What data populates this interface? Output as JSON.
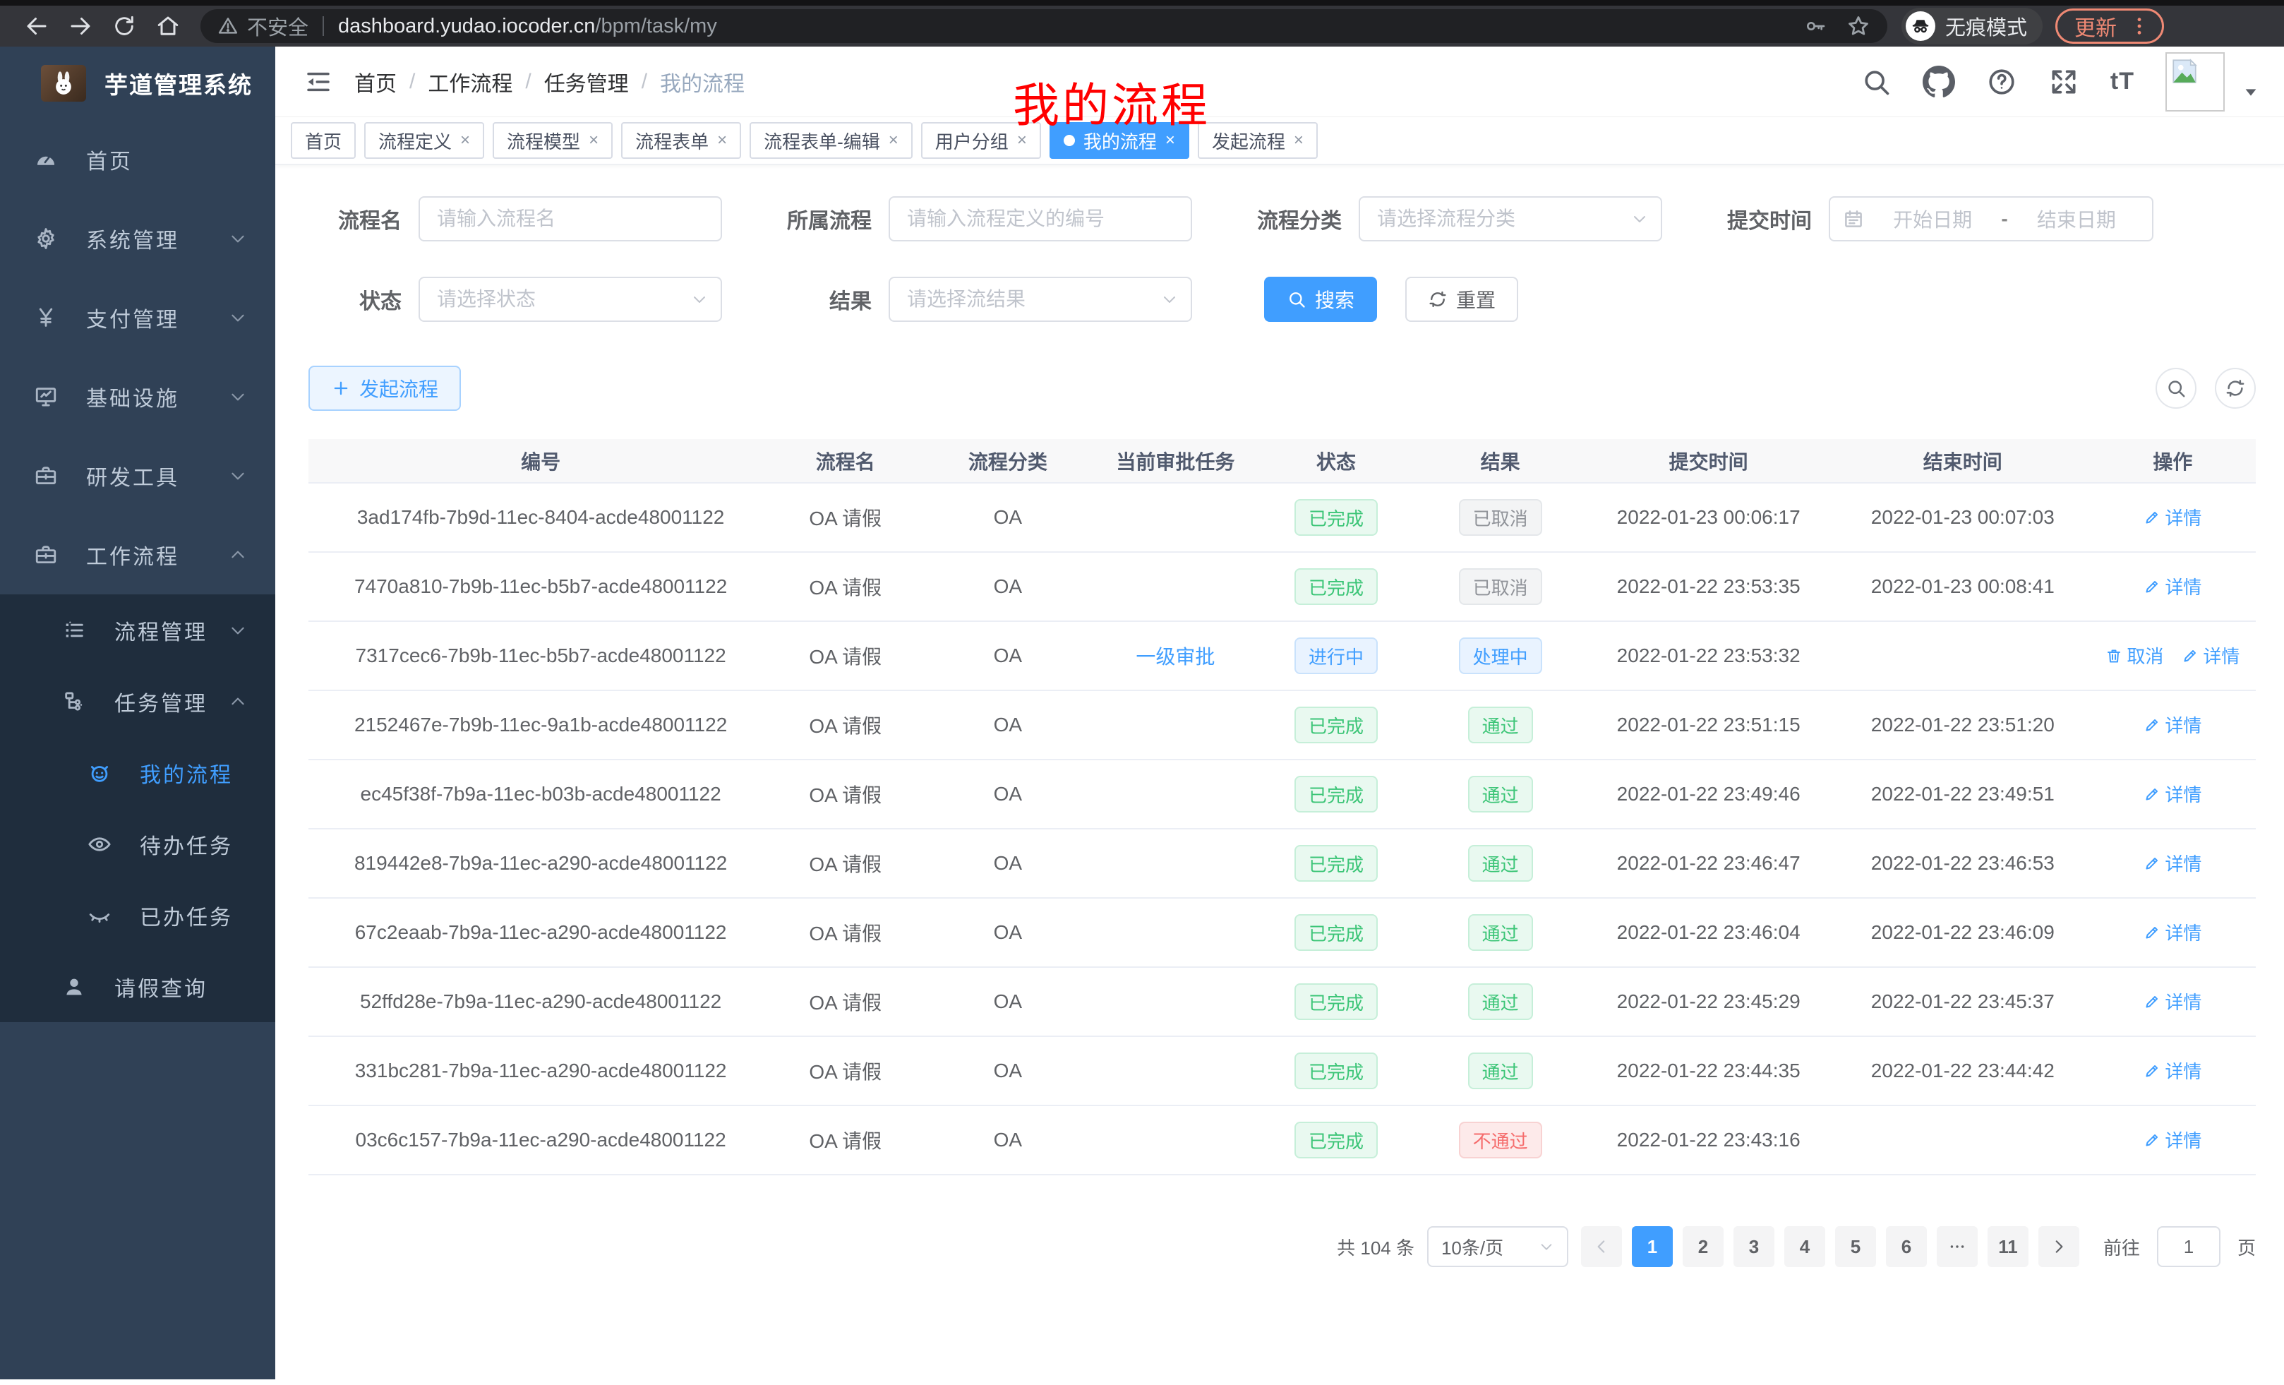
{
  "browser": {
    "insecure_label": "不安全",
    "url_host": "dashboard.yudao.iocoder.cn",
    "url_path": "/bpm/task/my",
    "incognito_label": "无痕模式",
    "update_label": "更新"
  },
  "sidebar": {
    "title": "芋道管理系统",
    "menu": [
      {
        "label": "首页",
        "icon": "dashboard",
        "indent": 1,
        "arrow": null,
        "active": false,
        "section": "base"
      },
      {
        "label": "系统管理",
        "icon": "gear",
        "indent": 1,
        "arrow": "down",
        "active": false,
        "section": "base"
      },
      {
        "label": "支付管理",
        "icon": "yen",
        "indent": 1,
        "arrow": "down",
        "active": false,
        "section": "base"
      },
      {
        "label": "基础设施",
        "icon": "monitor",
        "indent": 1,
        "arrow": "down",
        "active": false,
        "section": "base"
      },
      {
        "label": "研发工具",
        "icon": "toolbox",
        "indent": 1,
        "arrow": "down",
        "active": false,
        "section": "base"
      },
      {
        "label": "工作流程",
        "icon": "toolbox",
        "indent": 1,
        "arrow": "up",
        "active": false,
        "section": "base"
      },
      {
        "label": "流程管理",
        "icon": "list",
        "indent": 2,
        "arrow": "down",
        "active": false,
        "section": "sub"
      },
      {
        "label": "任务管理",
        "icon": "tree",
        "indent": 2,
        "arrow": "up",
        "active": false,
        "section": "sub"
      },
      {
        "label": "我的流程",
        "icon": "robot",
        "indent": 3,
        "arrow": null,
        "active": true,
        "section": "sub"
      },
      {
        "label": "待办任务",
        "icon": "eye",
        "indent": 3,
        "arrow": null,
        "active": false,
        "section": "sub"
      },
      {
        "label": "已办任务",
        "icon": "eye-off",
        "indent": 3,
        "arrow": null,
        "active": false,
        "section": "sub"
      },
      {
        "label": "请假查询",
        "icon": "user",
        "indent": 2,
        "arrow": null,
        "active": false,
        "section": "sub"
      }
    ]
  },
  "navbar": {
    "breadcrumb": [
      "首页",
      "工作流程",
      "任务管理",
      "我的流程"
    ],
    "overlay_title": "我的流程"
  },
  "tabs": [
    {
      "label": "首页",
      "closable": false,
      "active": false
    },
    {
      "label": "流程定义",
      "closable": true,
      "active": false
    },
    {
      "label": "流程模型",
      "closable": true,
      "active": false
    },
    {
      "label": "流程表单",
      "closable": true,
      "active": false
    },
    {
      "label": "流程表单-编辑",
      "closable": true,
      "active": false
    },
    {
      "label": "用户分组",
      "closable": true,
      "active": false
    },
    {
      "label": "我的流程",
      "closable": true,
      "active": true
    },
    {
      "label": "发起流程",
      "closable": true,
      "active": false
    }
  ],
  "filters": {
    "name_label": "流程名",
    "name_placeholder": "请输入流程名",
    "definition_label": "所属流程",
    "definition_placeholder": "请输入流程定义的编号",
    "category_label": "流程分类",
    "category_placeholder": "请选择流程分类",
    "time_label": "提交时间",
    "time_start_placeholder": "开始日期",
    "time_separator": "-",
    "time_end_placeholder": "结束日期",
    "status_label": "状态",
    "status_placeholder": "请选择状态",
    "result_label": "结果",
    "result_placeholder": "请选择流结果",
    "search_label": "搜索",
    "reset_label": "重置"
  },
  "toolbar": {
    "create_label": "发起流程"
  },
  "table": {
    "columns": [
      "编号",
      "流程名",
      "流程分类",
      "当前审批任务",
      "状态",
      "结果",
      "提交时间",
      "结束时间",
      "操作"
    ],
    "rows": [
      {
        "id": "3ad174fb-7b9d-11ec-8404-acde48001122",
        "name": "OA 请假",
        "category": "OA",
        "task": "",
        "status": "已完成",
        "status_type": "success",
        "result": "已取消",
        "result_type": "info",
        "submit_time": "2022-01-23 00:06:17",
        "end_time": "2022-01-23 00:07:03",
        "actions": [
          {
            "label": "详情",
            "icon": "edit"
          }
        ]
      },
      {
        "id": "7470a810-7b9b-11ec-b5b7-acde48001122",
        "name": "OA 请假",
        "category": "OA",
        "task": "",
        "status": "已完成",
        "status_type": "success",
        "result": "已取消",
        "result_type": "info",
        "submit_time": "2022-01-22 23:53:35",
        "end_time": "2022-01-23 00:08:41",
        "actions": [
          {
            "label": "详情",
            "icon": "edit"
          }
        ]
      },
      {
        "id": "7317cec6-7b9b-11ec-b5b7-acde48001122",
        "name": "OA 请假",
        "category": "OA",
        "task": "一级审批",
        "status": "进行中",
        "status_type": "primary",
        "result": "处理中",
        "result_type": "primary",
        "submit_time": "2022-01-22 23:53:32",
        "end_time": "",
        "actions": [
          {
            "label": "取消",
            "icon": "delete"
          },
          {
            "label": "详情",
            "icon": "edit"
          }
        ]
      },
      {
        "id": "2152467e-7b9b-11ec-9a1b-acde48001122",
        "name": "OA 请假",
        "category": "OA",
        "task": "",
        "status": "已完成",
        "status_type": "success",
        "result": "通过",
        "result_type": "success",
        "submit_time": "2022-01-22 23:51:15",
        "end_time": "2022-01-22 23:51:20",
        "actions": [
          {
            "label": "详情",
            "icon": "edit"
          }
        ]
      },
      {
        "id": "ec45f38f-7b9a-11ec-b03b-acde48001122",
        "name": "OA 请假",
        "category": "OA",
        "task": "",
        "status": "已完成",
        "status_type": "success",
        "result": "通过",
        "result_type": "success",
        "submit_time": "2022-01-22 23:49:46",
        "end_time": "2022-01-22 23:49:51",
        "actions": [
          {
            "label": "详情",
            "icon": "edit"
          }
        ]
      },
      {
        "id": "819442e8-7b9a-11ec-a290-acde48001122",
        "name": "OA 请假",
        "category": "OA",
        "task": "",
        "status": "已完成",
        "status_type": "success",
        "result": "通过",
        "result_type": "success",
        "submit_time": "2022-01-22 23:46:47",
        "end_time": "2022-01-22 23:46:53",
        "actions": [
          {
            "label": "详情",
            "icon": "edit"
          }
        ]
      },
      {
        "id": "67c2eaab-7b9a-11ec-a290-acde48001122",
        "name": "OA 请假",
        "category": "OA",
        "task": "",
        "status": "已完成",
        "status_type": "success",
        "result": "通过",
        "result_type": "success",
        "submit_time": "2022-01-22 23:46:04",
        "end_time": "2022-01-22 23:46:09",
        "actions": [
          {
            "label": "详情",
            "icon": "edit"
          }
        ]
      },
      {
        "id": "52ffd28e-7b9a-11ec-a290-acde48001122",
        "name": "OA 请假",
        "category": "OA",
        "task": "",
        "status": "已完成",
        "status_type": "success",
        "result": "通过",
        "result_type": "success",
        "submit_time": "2022-01-22 23:45:29",
        "end_time": "2022-01-22 23:45:37",
        "actions": [
          {
            "label": "详情",
            "icon": "edit"
          }
        ]
      },
      {
        "id": "331bc281-7b9a-11ec-a290-acde48001122",
        "name": "OA 请假",
        "category": "OA",
        "task": "",
        "status": "已完成",
        "status_type": "success",
        "result": "通过",
        "result_type": "success",
        "submit_time": "2022-01-22 23:44:35",
        "end_time": "2022-01-22 23:44:42",
        "actions": [
          {
            "label": "详情",
            "icon": "edit"
          }
        ]
      },
      {
        "id": "03c6c157-7b9a-11ec-a290-acde48001122",
        "name": "OA 请假",
        "category": "OA",
        "task": "",
        "status": "已完成",
        "status_type": "success",
        "result": "不通过",
        "result_type": "danger",
        "submit_time": "2022-01-22 23:43:16",
        "end_time": "",
        "actions": [
          {
            "label": "详情",
            "icon": "edit"
          }
        ]
      }
    ]
  },
  "pagination": {
    "total": "共 104 条",
    "page_size": "10条/页",
    "pages": [
      "1",
      "2",
      "3",
      "4",
      "5",
      "6",
      "more",
      "11"
    ],
    "active_page": "1",
    "goto_label": "前往",
    "goto_value": "1",
    "goto_unit": "页"
  },
  "colors": {
    "primary": "#409eff",
    "success": "#3cc577",
    "danger": "#f56c6c",
    "info": "#909399",
    "update_button": "#ef8974",
    "overlay_title": "#ff0000",
    "sidebar_bg": "#304156",
    "submenu_bg": "#1f2d3d"
  }
}
